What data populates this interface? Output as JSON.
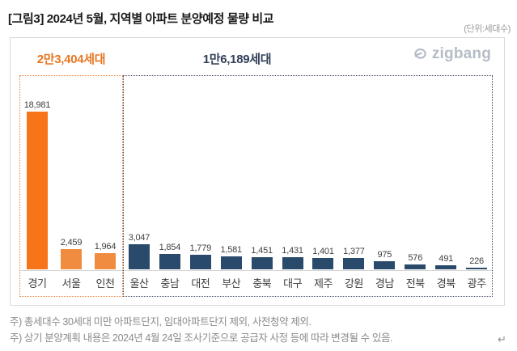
{
  "header": {
    "title": "[그림3] 2024년 5월, 지역별 아파트 분양예정 물량 비교",
    "unit_label": "(단위:세대수)"
  },
  "logo": {
    "text": "zigbang",
    "color": "#b5bcc6"
  },
  "chart_data": {
    "type": "bar",
    "title": "2024년 5월, 지역별 아파트 분양예정 물량 비교",
    "unit": "세대수",
    "ylim": [
      0,
      20000
    ],
    "grid": false,
    "groups": [
      {
        "total_label": "2만3,404세대",
        "total_value": 23404,
        "label_color": "#e87722",
        "border_color": "#e8803a",
        "categories": [
          "경기",
          "서울",
          "인천"
        ],
        "values": [
          18981,
          2459,
          1964
        ],
        "bar_colors": [
          "#f87419",
          "#f08c40",
          "#f08c40"
        ]
      },
      {
        "total_label": "1만6,189세대",
        "total_value": 16189,
        "label_color": "#32405a",
        "border_color": "#3c4b60",
        "categories": [
          "울산",
          "충남",
          "대전",
          "부산",
          "충북",
          "대구",
          "제주",
          "강원",
          "경남",
          "전북",
          "경북",
          "광주"
        ],
        "values": [
          3047,
          1854,
          1779,
          1581,
          1451,
          1431,
          1401,
          1377,
          975,
          576,
          491,
          226
        ],
        "bar_colors": [
          "#2a4a6c",
          "#2a4a6c",
          "#2a4a6c",
          "#2a4a6c",
          "#2a4a6c",
          "#2a4a6c",
          "#2a4a6c",
          "#2a4a6c",
          "#2a4a6c",
          "#2a4a6c",
          "#2a4a6c",
          "#2a4a6c"
        ]
      }
    ]
  },
  "footnotes": [
    "주) 총세대수 30세대 미만 아파트단지, 임대아파트단지 제외, 사전청약 제외.",
    "주) 상기 분양계획 내용은 2024년 4월 24일 조사기준으로 공급자 사정 등에 따라 변경될 수 있음."
  ],
  "misc": {
    "return_mark": "↵"
  }
}
